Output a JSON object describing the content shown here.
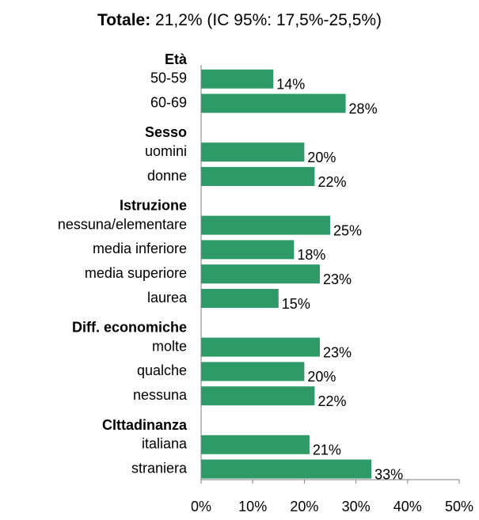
{
  "title": {
    "bold": "Totale:",
    "rest": " 21,2% (IC 95%: 17,5%-25,5%)"
  },
  "chart_data": {
    "type": "bar",
    "orientation": "horizontal",
    "color": "#2e9a67",
    "xlim": [
      0,
      50
    ],
    "xticks": [
      "0%",
      "10%",
      "20%",
      "30%",
      "40%",
      "50%"
    ],
    "grid": false,
    "groups": [
      {
        "name": "Età",
        "items": [
          {
            "label": "50-59",
            "value": 14,
            "value_label": "14%"
          },
          {
            "label": "60-69",
            "value": 28,
            "value_label": "28%"
          }
        ]
      },
      {
        "name": "Sesso",
        "items": [
          {
            "label": "uomini",
            "value": 20,
            "value_label": "20%"
          },
          {
            "label": "donne",
            "value": 22,
            "value_label": "22%"
          }
        ]
      },
      {
        "name": "Istruzione",
        "items": [
          {
            "label": "nessuna/elementare",
            "value": 25,
            "value_label": "25%"
          },
          {
            "label": "media inferiore",
            "value": 18,
            "value_label": "18%"
          },
          {
            "label": "media superiore",
            "value": 23,
            "value_label": "23%"
          },
          {
            "label": "laurea",
            "value": 15,
            "value_label": "15%"
          }
        ]
      },
      {
        "name": "Diff. economiche",
        "items": [
          {
            "label": "molte",
            "value": 23,
            "value_label": "23%"
          },
          {
            "label": "qualche",
            "value": 20,
            "value_label": "20%"
          },
          {
            "label": "nessuna",
            "value": 22,
            "value_label": "22%"
          }
        ]
      },
      {
        "name": "CIttadinanza",
        "items": [
          {
            "label": "italiana",
            "value": 21,
            "value_label": "21%"
          },
          {
            "label": "straniera",
            "value": 33,
            "value_label": "33%"
          }
        ]
      }
    ]
  }
}
